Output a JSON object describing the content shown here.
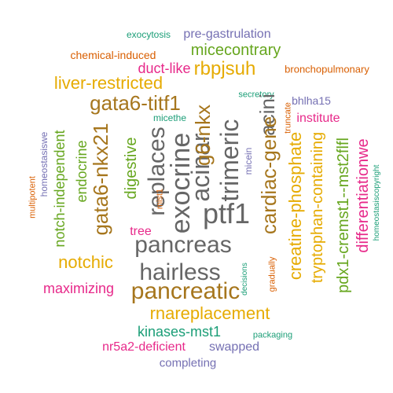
{
  "colors": {
    "background": "#ffffff",
    "purple": "#7570b3",
    "orange": "#d95f02",
    "magenta": "#e7298a",
    "green": "#66a61e",
    "gold": "#e6ab02",
    "brown": "#a6761d",
    "gray": "#666666",
    "teal": "#1b9e77"
  },
  "words": [
    {
      "text": "exocytosis",
      "color": "teal",
      "weight": 12
    },
    {
      "text": "pre-gastrulation",
      "color": "purple",
      "weight": 16
    },
    {
      "text": "chemical-induced",
      "color": "orange",
      "weight": 14
    },
    {
      "text": "micecontrary",
      "color": "green",
      "weight": 20
    },
    {
      "text": "duct-like",
      "color": "magenta",
      "weight": 18
    },
    {
      "text": "rbpjsuh",
      "color": "gold",
      "weight": 24
    },
    {
      "text": "bronchopulmonary",
      "color": "orange",
      "weight": 13
    },
    {
      "text": "liver-restricted",
      "color": "gold",
      "weight": 22
    },
    {
      "text": "gata6-titf1",
      "color": "brown",
      "weight": 26
    },
    {
      "text": "secretory",
      "color": "teal",
      "weight": 11
    },
    {
      "text": "acini",
      "color": "gray",
      "weight": 26
    },
    {
      "text": "truncate",
      "color": "orange",
      "weight": 11
    },
    {
      "text": "bhlha15",
      "color": "purple",
      "weight": 14
    },
    {
      "text": "institute",
      "color": "magenta",
      "weight": 16
    },
    {
      "text": "micethe",
      "color": "teal",
      "weight": 12
    },
    {
      "text": "homeostasiswe",
      "color": "purple",
      "weight": 12
    },
    {
      "text": "multipotent",
      "color": "orange",
      "weight": 11
    },
    {
      "text": "notch-independent",
      "color": "green",
      "weight": 18
    },
    {
      "text": "endocrine",
      "color": "green",
      "weight": 18
    },
    {
      "text": "gata6-nkx21",
      "color": "brown",
      "weight": 26
    },
    {
      "text": "digestive",
      "color": "green",
      "weight": 20
    },
    {
      "text": "replaces",
      "color": "gray",
      "weight": 30
    },
    {
      "text": "exocrine",
      "color": "gray",
      "weight": 34
    },
    {
      "text": "acinar",
      "color": "gray",
      "weight": 32
    },
    {
      "text": "g6-nkx",
      "color": "brown",
      "weight": 26
    },
    {
      "text": "mist1",
      "color": "orange",
      "weight": 11
    },
    {
      "text": "trimeric",
      "color": "gray",
      "weight": 32
    },
    {
      "text": "micein",
      "color": "purple",
      "weight": 12
    },
    {
      "text": "cardiac-gene",
      "color": "brown",
      "weight": 26
    },
    {
      "text": "creatine-phosphate",
      "color": "gold",
      "weight": 22
    },
    {
      "text": "tryptophan-containing",
      "color": "gold",
      "weight": 20
    },
    {
      "text": "pdx1-cremst1--mst2flfl",
      "color": "green",
      "weight": 20
    },
    {
      "text": "differentiationwe",
      "color": "magenta",
      "weight": 20
    },
    {
      "text": "homeostasiscopyright",
      "color": "teal",
      "weight": 10
    },
    {
      "text": "ptf1",
      "color": "gray",
      "weight": 36
    },
    {
      "text": "tree",
      "color": "magenta",
      "weight": 16
    },
    {
      "text": "pancreas",
      "color": "gray",
      "weight": 30
    },
    {
      "text": "notchic",
      "color": "gold",
      "weight": 22
    },
    {
      "text": "hairless",
      "color": "gray",
      "weight": 30
    },
    {
      "text": "maximizing",
      "color": "magenta",
      "weight": 18
    },
    {
      "text": "pancreatic",
      "color": "brown",
      "weight": 30
    },
    {
      "text": "decisions",
      "color": "teal",
      "weight": 10
    },
    {
      "text": "gradually",
      "color": "orange",
      "weight": 11
    },
    {
      "text": "rnareplacement",
      "color": "gold",
      "weight": 22
    },
    {
      "text": "kinases-mst1",
      "color": "teal",
      "weight": 18
    },
    {
      "text": "packaging",
      "color": "teal",
      "weight": 11
    },
    {
      "text": "nr5a2-deficient",
      "color": "magenta",
      "weight": 16
    },
    {
      "text": "swapped",
      "color": "purple",
      "weight": 16
    },
    {
      "text": "completing",
      "color": "purple",
      "weight": 15
    }
  ]
}
